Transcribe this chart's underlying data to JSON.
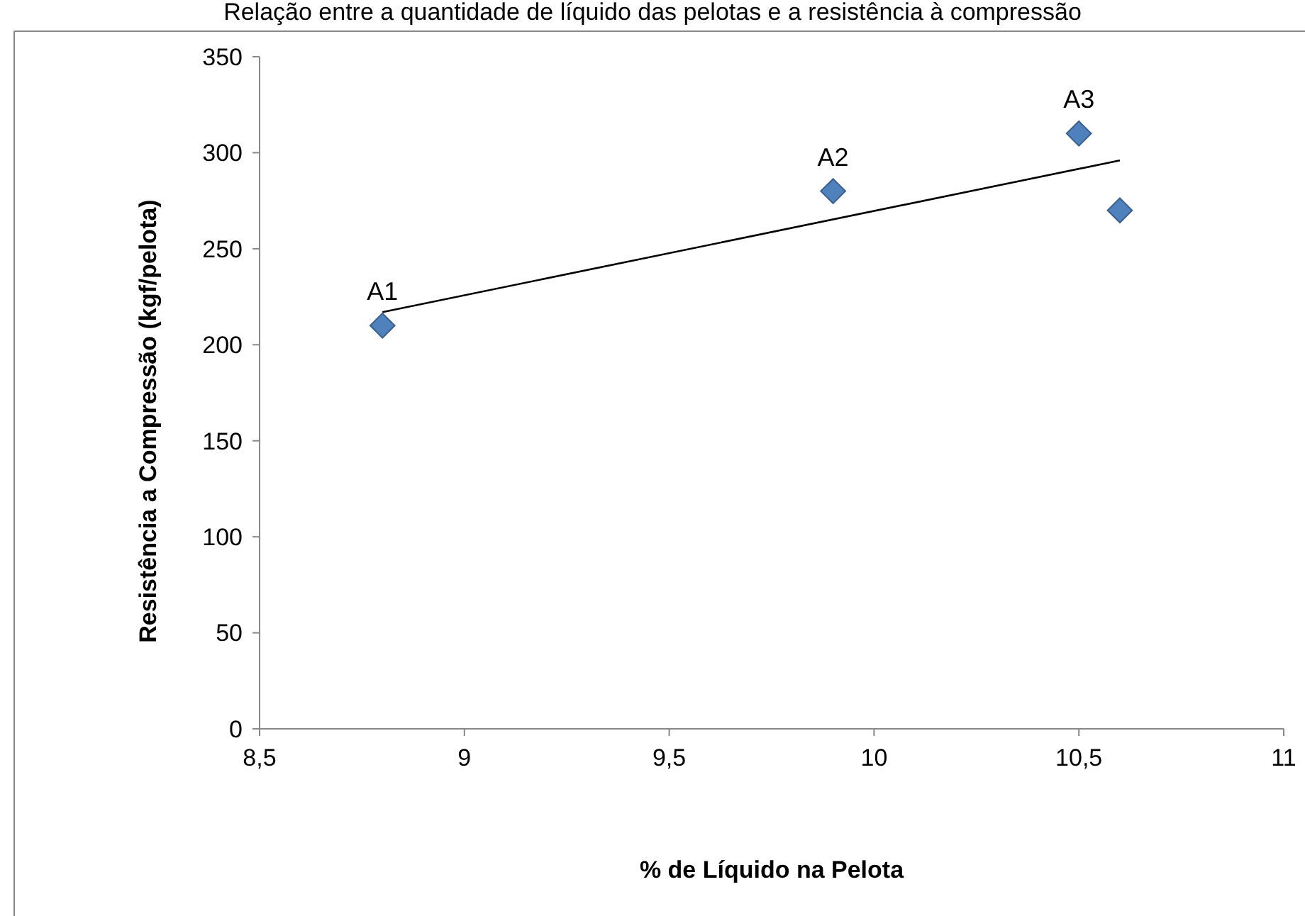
{
  "chart_data": {
    "type": "scatter",
    "title": "Relação entre a quantidade de líquido das pelotas e a resistência à compressão",
    "xlabel": "% de Líquido na Pelota",
    "ylabel": "Resistência a Compressão (kgf/pelota)",
    "series": [
      {
        "color": "#4f81bd",
        "x": [
          8.8,
          9.9,
          10.5,
          10.6
        ],
        "values": [
          210,
          280,
          310,
          270
        ]
      },
      {
        "type": "line",
        "color": "#000000",
        "x": [
          8.8,
          10.6
        ],
        "values": [
          217,
          296
        ],
        "marker": "none"
      }
    ],
    "annotations": [
      {
        "text": "A1",
        "x": 8.8,
        "y": 210
      },
      {
        "text": "A2",
        "x": 9.9,
        "y": 280
      },
      {
        "text": "A3",
        "x": 10.5,
        "y": 310
      }
    ],
    "xlim": [
      8.5,
      11
    ],
    "ylim": [
      0,
      350
    ],
    "xticks": [
      {
        "value": 8.5,
        "label": "8,5"
      },
      9,
      {
        "value": 9.5,
        "label": "9,5"
      },
      10,
      {
        "value": 10.5,
        "label": "10,5"
      },
      11
    ],
    "yticks": [
      0,
      50,
      100,
      150,
      200,
      250,
      300,
      350
    ],
    "marker": "diamond",
    "grid": false
  }
}
